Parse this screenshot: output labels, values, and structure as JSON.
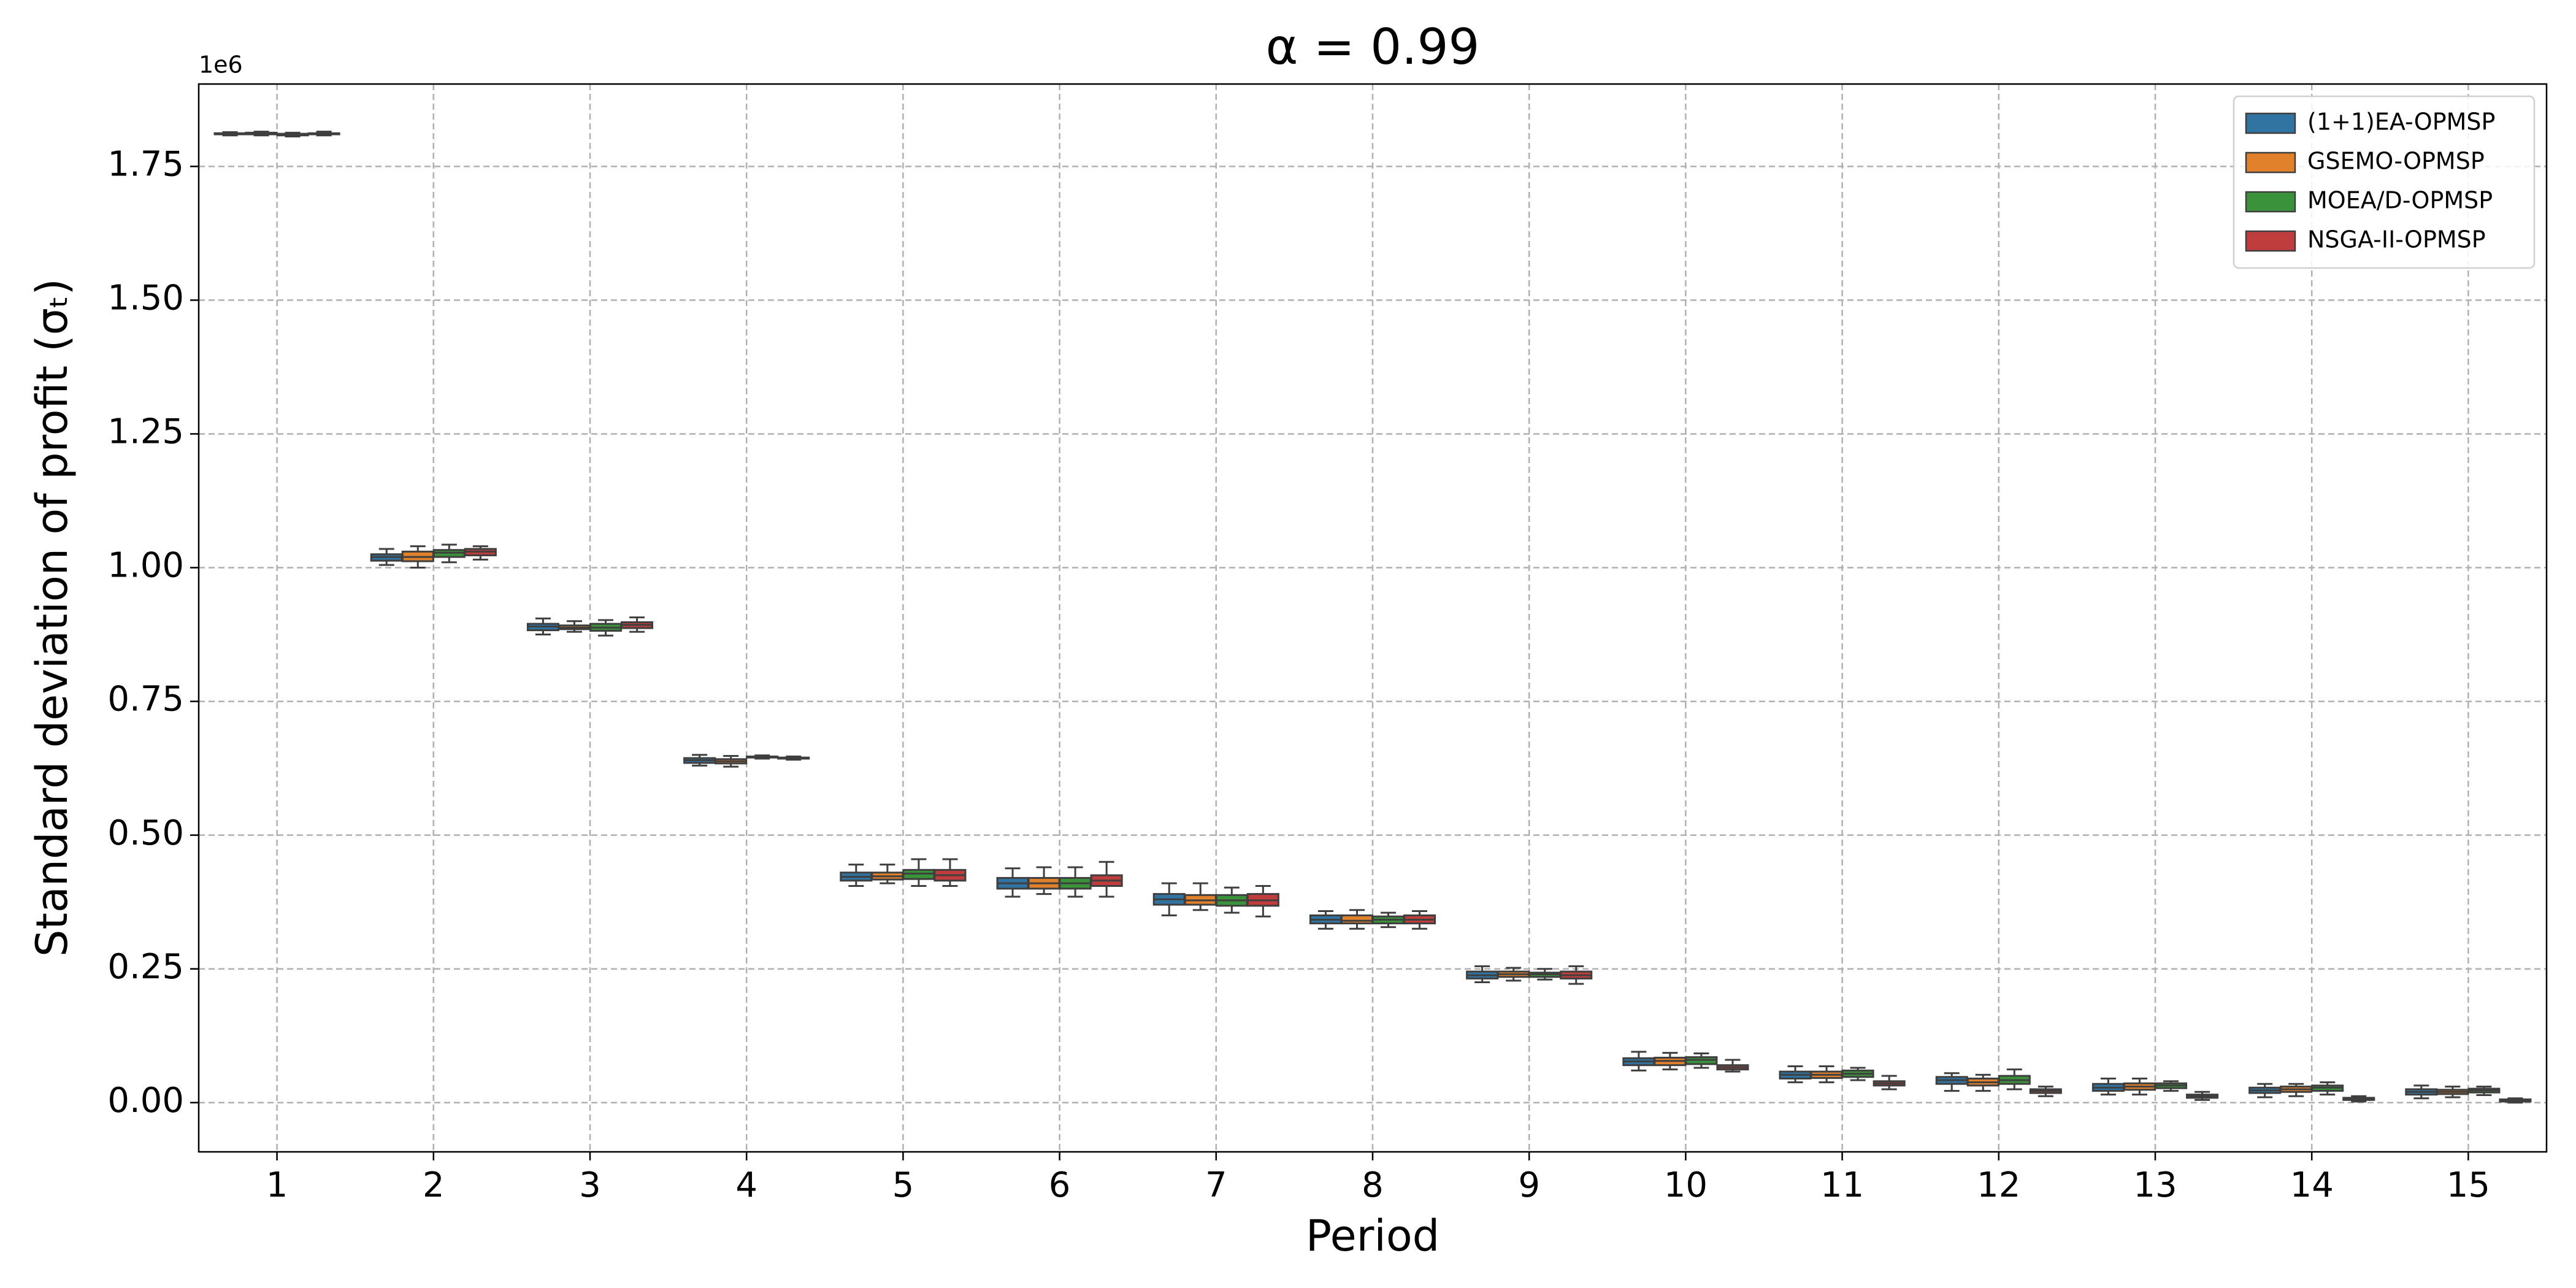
{
  "chart_data": {
    "type": "box",
    "title": "α = 0.99",
    "xlabel": "Period",
    "ylabel": "Standard deviation of profit (σₜ)",
    "y_offset_label": "1e6",
    "categories": [
      "1",
      "2",
      "3",
      "4",
      "5",
      "6",
      "7",
      "8",
      "9",
      "10",
      "11",
      "12",
      "13",
      "14",
      "15"
    ],
    "ylim": [
      -0.092,
      1.904
    ],
    "yticks": [
      {
        "value": 0,
        "label": "0.00"
      },
      {
        "value": 0.25,
        "label": "0.25"
      },
      {
        "value": 0.5,
        "label": "0.50"
      },
      {
        "value": 0.75,
        "label": "0.75"
      },
      {
        "value": 1,
        "label": "1.00"
      },
      {
        "value": 1.25,
        "label": "1.25"
      },
      {
        "value": 1.5,
        "label": "1.50"
      },
      {
        "value": 1.75,
        "label": "1.75"
      }
    ],
    "grid": true,
    "legend_loc": "upper right",
    "series": [
      {
        "name": "(1+1)EA-OPMSP",
        "color": "#3274a1",
        "boxes": [
          [
            1.808,
            1.81,
            1.811,
            1.812,
            1.814
          ],
          [
            1.005,
            1.013,
            1.02,
            1.025,
            1.035
          ],
          [
            0.875,
            0.883,
            0.89,
            0.895,
            0.905
          ],
          [
            0.63,
            0.635,
            0.64,
            0.644,
            0.65
          ],
          [
            0.405,
            0.415,
            0.422,
            0.43,
            0.445
          ],
          [
            0.385,
            0.4,
            0.41,
            0.42,
            0.438
          ],
          [
            0.35,
            0.37,
            0.38,
            0.39,
            0.41
          ],
          [
            0.325,
            0.335,
            0.342,
            0.35,
            0.358
          ],
          [
            0.225,
            0.232,
            0.238,
            0.245,
            0.255
          ],
          [
            0.06,
            0.07,
            0.077,
            0.083,
            0.095
          ],
          [
            0.038,
            0.045,
            0.052,
            0.058,
            0.068
          ],
          [
            0.022,
            0.035,
            0.042,
            0.048,
            0.055
          ],
          [
            0.015,
            0.022,
            0.028,
            0.035,
            0.045
          ],
          [
            0.01,
            0.018,
            0.023,
            0.028,
            0.035
          ],
          [
            0.008,
            0.015,
            0.02,
            0.025,
            0.032
          ]
        ]
      },
      {
        "name": "GSEMO-OPMSP",
        "color": "#e1812c",
        "boxes": [
          [
            1.808,
            1.81,
            1.812,
            1.813,
            1.815
          ],
          [
            1.0,
            1.012,
            1.02,
            1.03,
            1.04
          ],
          [
            0.88,
            0.885,
            0.888,
            0.892,
            0.9
          ],
          [
            0.628,
            0.634,
            0.638,
            0.642,
            0.648
          ],
          [
            0.41,
            0.417,
            0.423,
            0.43,
            0.445
          ],
          [
            0.39,
            0.4,
            0.41,
            0.42,
            0.44
          ],
          [
            0.36,
            0.37,
            0.378,
            0.388,
            0.41
          ],
          [
            0.325,
            0.335,
            0.34,
            0.35,
            0.36
          ],
          [
            0.228,
            0.235,
            0.24,
            0.245,
            0.252
          ],
          [
            0.062,
            0.07,
            0.078,
            0.084,
            0.093
          ],
          [
            0.038,
            0.046,
            0.052,
            0.058,
            0.068
          ],
          [
            0.022,
            0.032,
            0.038,
            0.045,
            0.052
          ],
          [
            0.015,
            0.024,
            0.03,
            0.036,
            0.045
          ],
          [
            0.012,
            0.02,
            0.025,
            0.03,
            0.035
          ],
          [
            0.01,
            0.016,
            0.02,
            0.024,
            0.03
          ]
        ]
      },
      {
        "name": "MOEA/D-OPMSP",
        "color": "#3a923a",
        "boxes": [
          [
            1.806,
            1.808,
            1.81,
            1.811,
            1.813
          ],
          [
            1.01,
            1.02,
            1.028,
            1.033,
            1.043
          ],
          [
            0.873,
            0.882,
            0.888,
            0.895,
            0.902
          ],
          [
            0.643,
            0.645,
            0.646,
            0.647,
            0.649
          ],
          [
            0.405,
            0.418,
            0.428,
            0.435,
            0.455
          ],
          [
            0.385,
            0.4,
            0.41,
            0.42,
            0.44
          ],
          [
            0.355,
            0.368,
            0.378,
            0.388,
            0.402
          ],
          [
            0.328,
            0.335,
            0.342,
            0.348,
            0.355
          ],
          [
            0.23,
            0.235,
            0.24,
            0.243,
            0.25
          ],
          [
            0.065,
            0.072,
            0.08,
            0.085,
            0.092
          ],
          [
            0.042,
            0.048,
            0.054,
            0.06,
            0.065
          ],
          [
            0.025,
            0.035,
            0.042,
            0.05,
            0.062
          ],
          [
            0.022,
            0.027,
            0.032,
            0.036,
            0.04
          ],
          [
            0.015,
            0.022,
            0.028,
            0.032,
            0.038
          ],
          [
            0.014,
            0.019,
            0.023,
            0.026,
            0.03
          ]
        ]
      },
      {
        "name": "NSGA-II-OPMSP",
        "color": "#c03d3e",
        "boxes": [
          [
            1.808,
            1.81,
            1.811,
            1.812,
            1.815
          ],
          [
            1.015,
            1.023,
            1.03,
            1.035,
            1.04
          ],
          [
            0.88,
            0.887,
            0.893,
            0.898,
            0.907
          ],
          [
            0.641,
            0.643,
            0.644,
            0.645,
            0.647
          ],
          [
            0.405,
            0.415,
            0.425,
            0.435,
            0.455
          ],
          [
            0.385,
            0.405,
            0.415,
            0.425,
            0.45
          ],
          [
            0.348,
            0.368,
            0.378,
            0.39,
            0.405
          ],
          [
            0.325,
            0.335,
            0.342,
            0.35,
            0.358
          ],
          [
            0.222,
            0.232,
            0.238,
            0.245,
            0.255
          ],
          [
            0.058,
            0.062,
            0.066,
            0.07,
            0.08
          ],
          [
            0.025,
            0.032,
            0.036,
            0.04,
            0.05
          ],
          [
            0.012,
            0.018,
            0.022,
            0.025,
            0.03
          ],
          [
            0.005,
            0.009,
            0.012,
            0.015,
            0.02
          ],
          [
            0.002,
            0.005,
            0.007,
            0.009,
            0.012
          ],
          [
            0.0,
            0.002,
            0.004,
            0.006,
            0.008
          ]
        ]
      }
    ]
  }
}
